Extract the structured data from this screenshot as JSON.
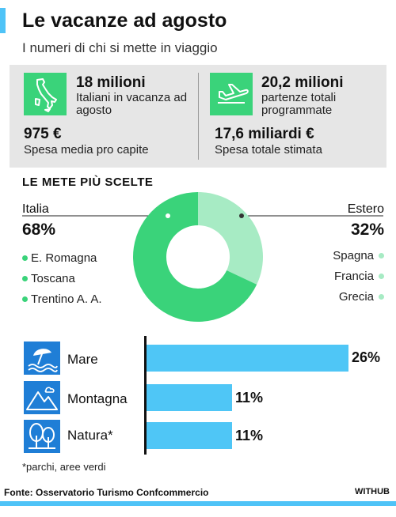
{
  "header": {
    "title": "Le vacanze ad agosto",
    "subtitle": "I numeri di chi si mette in viaggio"
  },
  "stats": {
    "left": {
      "icon": "italy-map-icon",
      "big": "18 milioni",
      "desc": "Italiani in vacanza ad agosto",
      "big2": "975 €",
      "desc2": "Spesa media pro capite"
    },
    "right": {
      "icon": "airplane-icon",
      "big": "20,2 milioni",
      "desc": "partenze totali programmate",
      "big2": "17,6 miliardi €",
      "desc2": "Spesa totale stimata"
    }
  },
  "destinations": {
    "section_title": "LE METE PIÙ SCELTE",
    "italy": {
      "label": "Italia",
      "pct": "68%",
      "items": [
        "E. Romagna",
        "Toscana",
        "Trentino A. A."
      ]
    },
    "abroad": {
      "label": "Estero",
      "pct": "32%",
      "items": [
        "Spagna",
        "Francia",
        "Grecia"
      ]
    }
  },
  "types": {
    "items": [
      {
        "label": "Mare",
        "value_label": "26%",
        "icon": "beach-umbrella-icon"
      },
      {
        "label": "Montagna",
        "value_label": "11%",
        "icon": "mountains-icon"
      },
      {
        "label": "Natura*",
        "value_label": "11%",
        "icon": "trees-icon"
      }
    ],
    "footnote": "*parchi, aree verdi"
  },
  "footer": {
    "source": "Fonte: Osservatorio Turismo Confcommercio",
    "brand": "WITHUB"
  },
  "colors": {
    "accent": "#4fc3f7",
    "italy_green": "#3ad37a",
    "abroad_green": "#a7ebc4",
    "bar_blue": "#4fc6f6",
    "icon_blue": "#1f7ed6"
  },
  "chart_data": [
    {
      "type": "pie",
      "title": "LE METE PIÙ SCELTE",
      "categories": [
        "Italia",
        "Estero"
      ],
      "values": [
        68,
        32
      ],
      "unit": "%",
      "donut": true
    },
    {
      "type": "bar",
      "orientation": "horizontal",
      "categories": [
        "Mare",
        "Montagna",
        "Natura*"
      ],
      "values": [
        26,
        11,
        11
      ],
      "unit": "%",
      "xlim": [
        0,
        26
      ]
    }
  ]
}
